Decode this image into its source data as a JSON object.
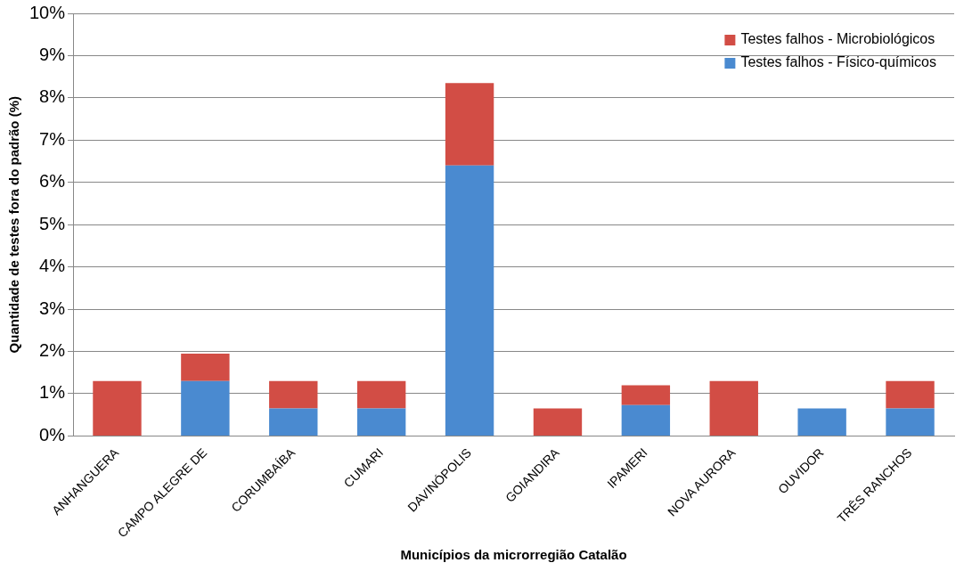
{
  "chart_data": {
    "type": "bar",
    "stacked": true,
    "xlabel": "Municípios da microrregião Catalão",
    "ylabel": "Quantidade de testes fora do padrão (%)",
    "categories": [
      "ANHANGUERA",
      "CAMPO ALEGRE DE",
      "CORUMBAÍBA",
      "CUMARI",
      "DAVINÓPOLIS",
      "GOIANDIRA",
      "IPAMERI",
      "NOVA AURORA",
      "OUVIDOR",
      "TRÊS RANCHOS"
    ],
    "series": [
      {
        "name": "Testes falhos - Físico-químicos",
        "color": "#4a8ad0",
        "values": [
          0,
          1.3,
          0.65,
          0.65,
          6.4,
          0,
          0.73,
          0,
          0.65,
          0.65
        ]
      },
      {
        "name": "Testes falhos - Microbiológicos",
        "color": "#d24d45",
        "values": [
          1.3,
          0.65,
          0.65,
          0.65,
          1.95,
          0.65,
          0.47,
          1.3,
          0,
          0.65
        ]
      }
    ],
    "ylim": [
      0,
      10
    ],
    "yticks": [
      {
        "value": 0,
        "label": "0%"
      },
      {
        "value": 1,
        "label": "1%"
      },
      {
        "value": 2,
        "label": "2%"
      },
      {
        "value": 3,
        "label": "3%"
      },
      {
        "value": 4,
        "label": "4%"
      },
      {
        "value": 5,
        "label": "5%"
      },
      {
        "value": 6,
        "label": "6%"
      },
      {
        "value": 7,
        "label": "7%"
      },
      {
        "value": 8,
        "label": "8%"
      },
      {
        "value": 9,
        "label": "9%"
      },
      {
        "value": 10,
        "label": "10%"
      }
    ],
    "grid": "y",
    "legend": "top right"
  }
}
